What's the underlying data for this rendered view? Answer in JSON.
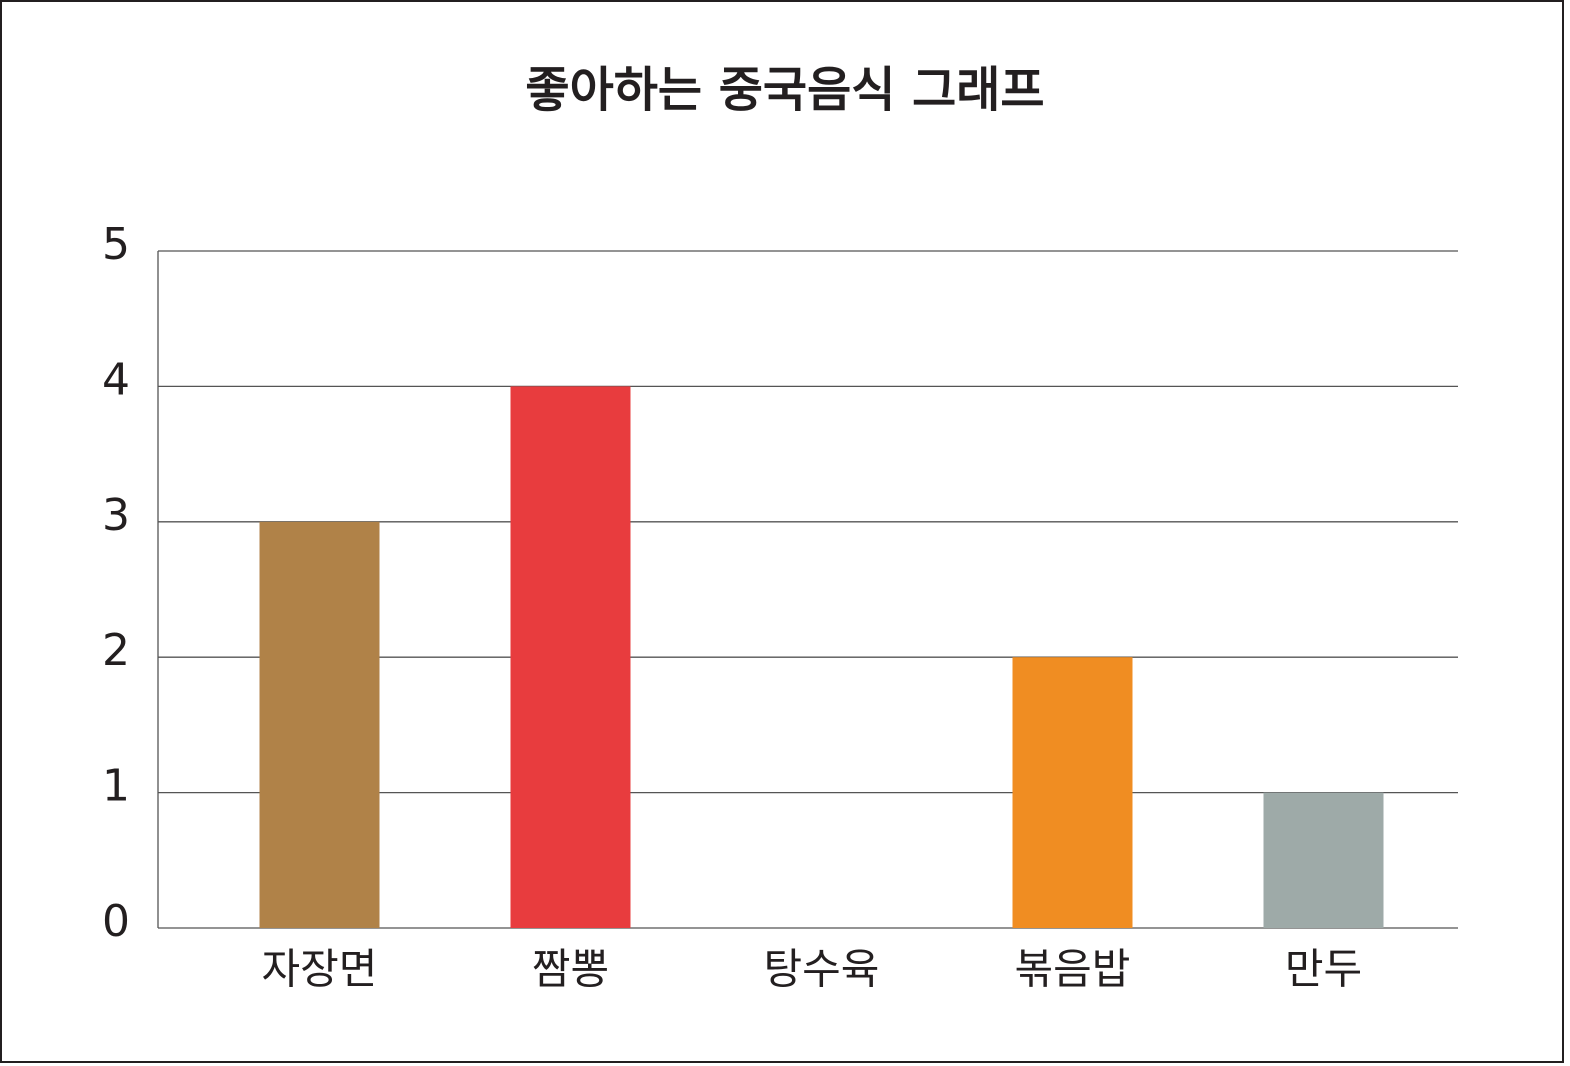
{
  "chart_data": {
    "type": "bar",
    "title": "좋아하는 중국음식 그래프",
    "categories": [
      "자장면",
      "짬뽕",
      "탕수육",
      "볶음밥",
      "만두"
    ],
    "values": [
      3,
      4,
      0,
      2,
      1
    ],
    "colors": [
      "#b08248",
      "#e83c3e",
      null,
      "#f08d22",
      "#9eaaa8"
    ],
    "ylim": [
      0,
      5
    ],
    "yticks": [
      0,
      1,
      2,
      3,
      4,
      5
    ],
    "grid": true
  }
}
